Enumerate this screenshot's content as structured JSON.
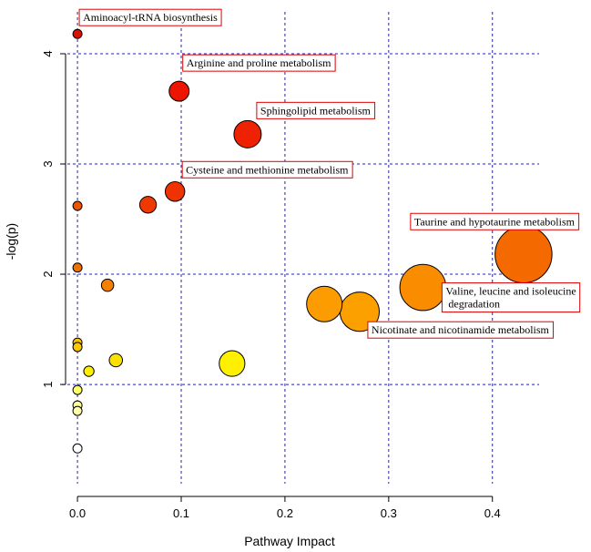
{
  "chart_data": {
    "type": "scatter",
    "title": "",
    "xlabel": "Pathway Impact",
    "ylabel": "-log(p)",
    "xlim": [
      -0.015,
      0.445
    ],
    "ylim": [
      0.1,
      4.38
    ],
    "xticks": [
      0.0,
      0.1,
      0.2,
      0.3,
      0.4
    ],
    "xtick_labels": [
      "0.0",
      "0.1",
      "0.2",
      "0.3",
      "0.4"
    ],
    "yticks": [
      1,
      2,
      3,
      4
    ],
    "ytick_labels": [
      "1",
      "2",
      "3",
      "4"
    ],
    "grid": true,
    "grid_color": "#2222bb",
    "points": [
      {
        "x": 0.0,
        "y": 4.18,
        "size": 0.0,
        "color": "#dd1100",
        "label": "Aminoacyl-tRNA biosynthesis"
      },
      {
        "x": 0.098,
        "y": 3.66,
        "size": 0.098,
        "color": "#ee1500",
        "label": "Arginine and proline metabolism"
      },
      {
        "x": 0.164,
        "y": 3.27,
        "size": 0.164,
        "color": "#ee2200",
        "label": "Sphingolipid metabolism"
      },
      {
        "x": 0.094,
        "y": 2.75,
        "size": 0.094,
        "color": "#ee3300",
        "label": "Cysteine and methionine metabolism"
      },
      {
        "x": 0.068,
        "y": 2.63,
        "size": 0.068,
        "color": "#ee3a00",
        "label": ""
      },
      {
        "x": 0.0,
        "y": 2.62,
        "size": 0.0,
        "color": "#ee5500",
        "label": ""
      },
      {
        "x": 0.43,
        "y": 2.18,
        "size": 0.43,
        "color": "#f56a00",
        "label": "Taurine and hypotaurine metabolism"
      },
      {
        "x": 0.0,
        "y": 2.06,
        "size": 0.0,
        "color": "#f07000",
        "label": ""
      },
      {
        "x": 0.029,
        "y": 1.9,
        "size": 0.029,
        "color": "#f57f00",
        "label": ""
      },
      {
        "x": 0.333,
        "y": 1.88,
        "size": 0.333,
        "color": "#fa8c00",
        "label": "Valine, leucine and isoleucine\n degradation"
      },
      {
        "x": 0.238,
        "y": 1.73,
        "size": 0.238,
        "color": "#fc9c00",
        "label": ""
      },
      {
        "x": 0.272,
        "y": 1.66,
        "size": 0.272,
        "color": "#fca000",
        "label": "Nicotinate and nicotinamide metabolism"
      },
      {
        "x": 0.0,
        "y": 1.38,
        "size": 0.0,
        "color": "#fcc000",
        "label": ""
      },
      {
        "x": 0.0,
        "y": 1.34,
        "size": 0.0,
        "color": "#fcc800",
        "label": ""
      },
      {
        "x": 0.037,
        "y": 1.22,
        "size": 0.037,
        "color": "#fce000",
        "label": ""
      },
      {
        "x": 0.149,
        "y": 1.19,
        "size": 0.149,
        "color": "#fff000",
        "label": ""
      },
      {
        "x": 0.011,
        "y": 1.12,
        "size": 0.011,
        "color": "#ffee00",
        "label": ""
      },
      {
        "x": 0.0,
        "y": 0.95,
        "size": 0.0,
        "color": "#ffff66",
        "label": ""
      },
      {
        "x": 0.0,
        "y": 0.81,
        "size": 0.0,
        "color": "#ffff99",
        "label": ""
      },
      {
        "x": 0.0,
        "y": 0.76,
        "size": 0.0,
        "color": "#ffffaa",
        "label": ""
      },
      {
        "x": 0.0,
        "y": 0.42,
        "size": 0.0,
        "color": "#ffffff",
        "label": ""
      }
    ]
  }
}
